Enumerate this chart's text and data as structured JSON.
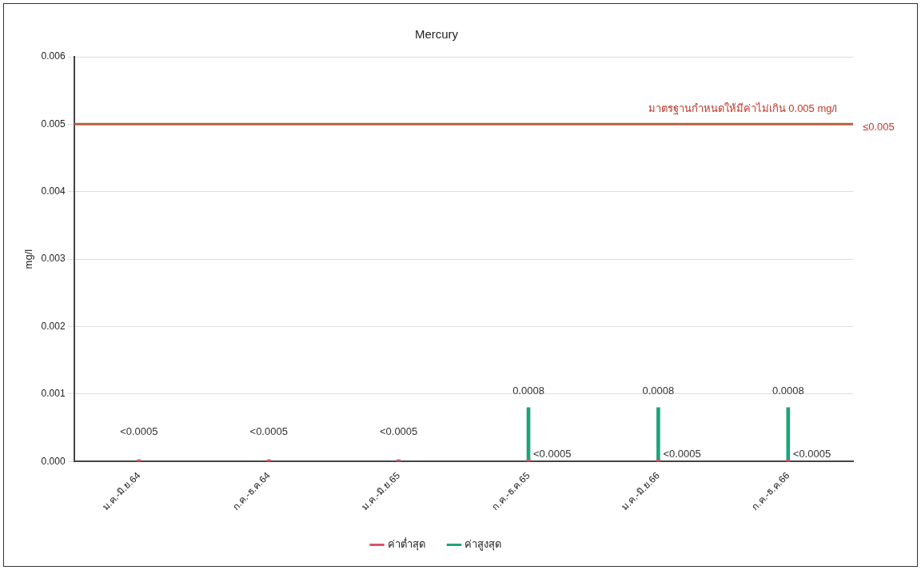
{
  "chart_data": {
    "type": "bar",
    "title": "Mercury",
    "ylabel": "mg/l",
    "categories": [
      "ม.ค.-มิ.ย.64",
      "ก.ค.-ธ.ค.64",
      "ม.ค.-มิ.ย.65",
      "ก.ค.-ธ.ค.65",
      "ม.ค.-มิ.ย.66",
      "ก.ค.-ธ.ค.66"
    ],
    "series": [
      {
        "name": "ค่าต่ำสุด",
        "type": "scatter",
        "color": "#d9536b",
        "values": [
          0,
          0,
          0,
          0,
          0,
          0
        ],
        "value_labels": [
          "<0.0005",
          "<0.0005",
          "<0.0005",
          "<0.0005",
          "<0.0005",
          "<0.0005"
        ]
      },
      {
        "name": "ค่าสูงสุด",
        "color": "#1fa37a",
        "values": [
          null,
          null,
          null,
          0.0008,
          0.0008,
          0.0008
        ],
        "value_labels": [
          null,
          null,
          null,
          "0.0008",
          "0.0008",
          "0.0008"
        ]
      }
    ],
    "ylim": [
      0,
      0.006
    ],
    "yticks": [
      {
        "value": 0,
        "label": "0.000"
      },
      0.001,
      0.002,
      0.003,
      0.004,
      0.005,
      0.006
    ],
    "ref_lines": [
      {
        "axis": "y",
        "value": 0.005,
        "label": "มาตรฐานกำหนดให้มีค่าไม่เกิน 0.005 mg/l",
        "color": "#b5603a"
      }
    ],
    "annotations": [
      "≤0.005"
    ],
    "grid": "y",
    "legend": "bottom",
    "marker": "square"
  }
}
